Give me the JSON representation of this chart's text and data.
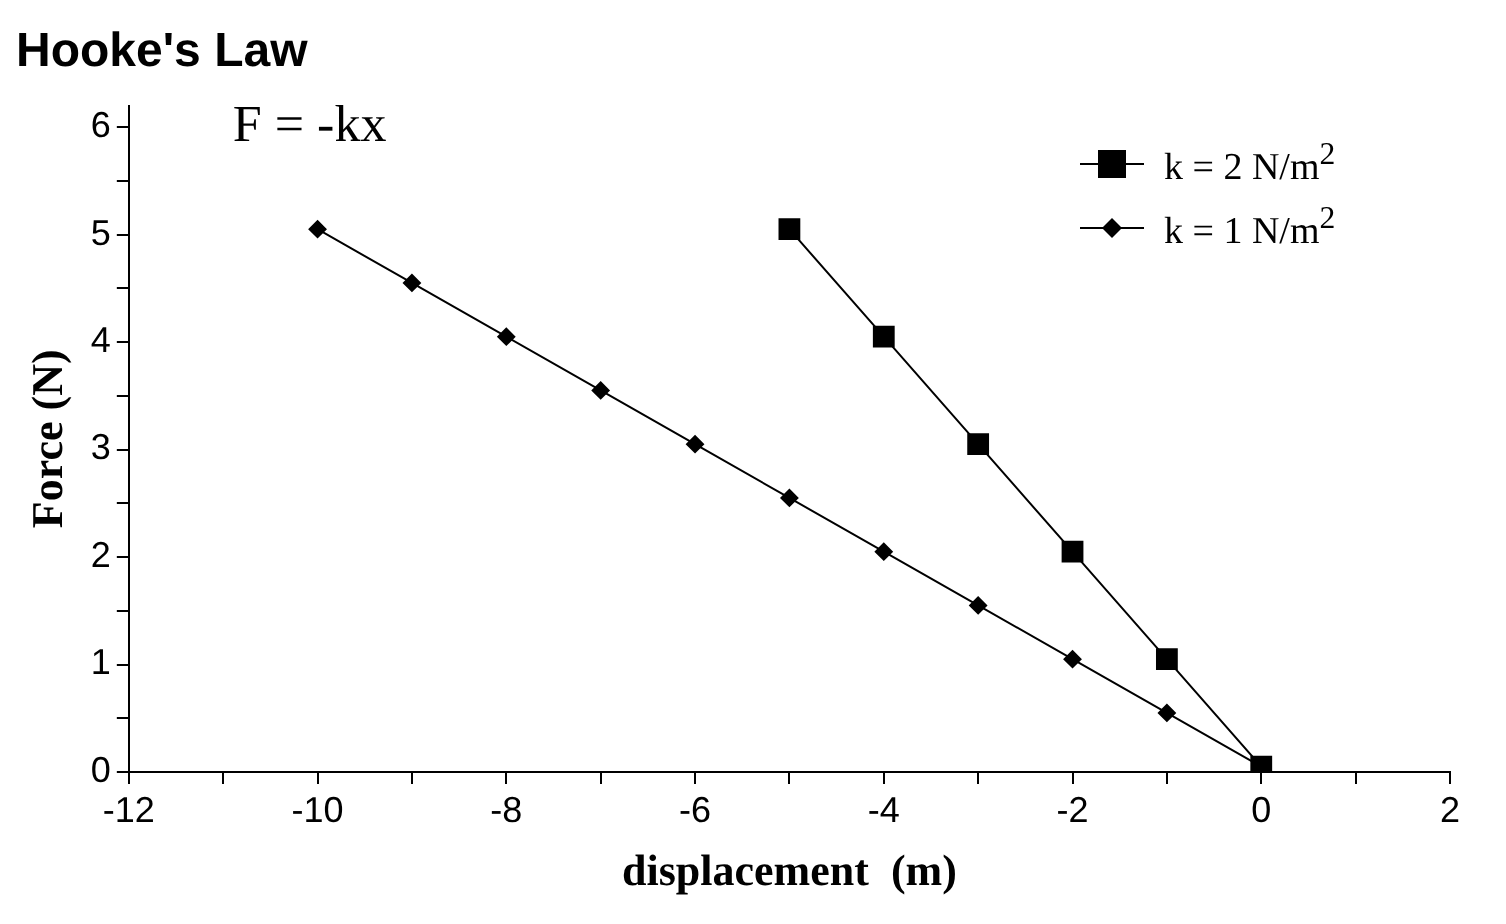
{
  "chart_data": {
    "type": "line",
    "title": "Hooke's Law",
    "xlabel": "displacement  (m)",
    "ylabel": "Force (N)",
    "annotations": [
      "F = -kx"
    ],
    "series": [
      {
        "name": "k = 2 N/m$^{2}$",
        "color": "#000000",
        "marker": "square",
        "x": [
          -5,
          -4,
          -3,
          -2,
          -1,
          0
        ],
        "values": [
          5.05,
          4.05,
          3.05,
          2.05,
          1.05,
          0.05
        ]
      },
      {
        "name": "k = 1 N/m$^{2}$",
        "color": "#000000",
        "marker": "diamond",
        "x": [
          -10,
          -9,
          -8,
          -7,
          -6,
          -5,
          -4,
          -3,
          -2,
          -1,
          0
        ],
        "values": [
          5.05,
          4.55,
          4.05,
          3.55,
          3.05,
          2.55,
          2.05,
          1.55,
          1.05,
          0.55,
          0.05
        ]
      }
    ],
    "xlim": [
      -12,
      2
    ],
    "xticks": [
      -12,
      {
        "value": -11,
        "label": null
      },
      -10,
      {
        "value": -9,
        "label": null
      },
      -8,
      {
        "value": -7,
        "label": null
      },
      -6,
      {
        "value": -5,
        "label": null
      },
      -4,
      {
        "value": -3,
        "label": null
      },
      -2,
      {
        "value": -1,
        "label": null
      },
      0,
      {
        "value": 1,
        "label": null
      },
      2
    ],
    "ylim": [
      0,
      6.2
    ],
    "yticks": [
      0,
      {
        "value": 0.5,
        "label": null
      },
      1,
      {
        "value": 1.5,
        "label": null
      },
      2,
      {
        "value": 2.5,
        "label": null
      },
      3,
      {
        "value": 3.5,
        "label": null
      },
      4,
      {
        "value": 4.5,
        "label": null
      },
      5,
      {
        "value": 5.5,
        "label": null
      },
      6
    ],
    "grid": false,
    "legend": "top right",
    "line_style": "solid"
  }
}
